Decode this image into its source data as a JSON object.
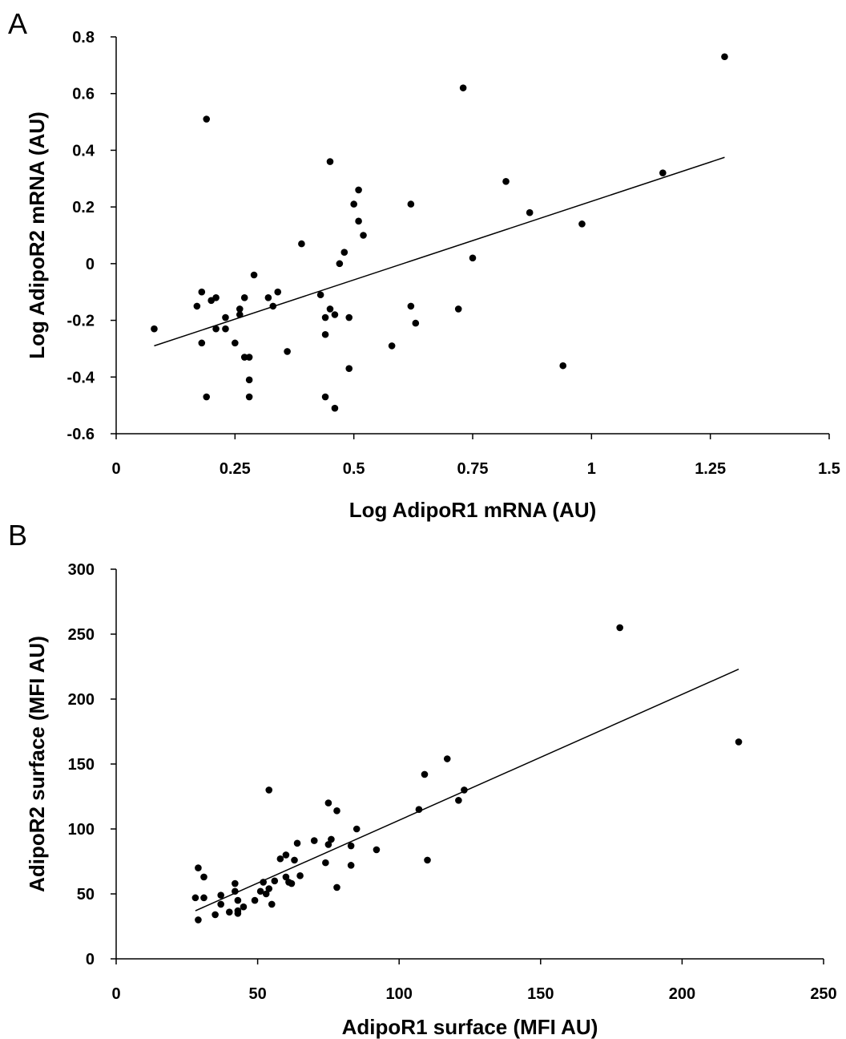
{
  "chart_data": [
    {
      "type": "scatter",
      "panel_label": "A",
      "xlabel": "Log AdipoR1 mRNA (AU)",
      "ylabel": "Log AdipoR2 mRNA (AU)",
      "xlim": [
        0,
        1.5
      ],
      "ylim": [
        -0.6,
        0.8
      ],
      "x_ticks": [
        "0",
        "0.25",
        "0.5",
        "0.75",
        "1",
        "1.25",
        "1.5"
      ],
      "x_tick_values": [
        0,
        0.25,
        0.5,
        0.75,
        1,
        1.25,
        1.5
      ],
      "y_ticks": [
        "-0.6",
        "-0.4",
        "-0.2",
        "0",
        "0.2",
        "0.4",
        "0.6",
        "0.8"
      ],
      "y_tick_values": [
        -0.6,
        -0.4,
        -0.2,
        0,
        0.2,
        0.4,
        0.6,
        0.8
      ],
      "grid": false,
      "trendline": {
        "x": [
          0.08,
          1.28
        ],
        "y": [
          -0.29,
          0.375
        ]
      },
      "points": [
        [
          0.08,
          -0.23
        ],
        [
          0.17,
          -0.15
        ],
        [
          0.18,
          -0.1
        ],
        [
          0.18,
          -0.28
        ],
        [
          0.19,
          0.51
        ],
        [
          0.19,
          -0.47
        ],
        [
          0.2,
          -0.13
        ],
        [
          0.21,
          -0.12
        ],
        [
          0.21,
          -0.23
        ],
        [
          0.23,
          -0.19
        ],
        [
          0.23,
          -0.23
        ],
        [
          0.25,
          -0.28
        ],
        [
          0.26,
          -0.16
        ],
        [
          0.26,
          -0.18
        ],
        [
          0.27,
          -0.12
        ],
        [
          0.27,
          -0.33
        ],
        [
          0.28,
          -0.33
        ],
        [
          0.28,
          -0.41
        ],
        [
          0.28,
          -0.47
        ],
        [
          0.29,
          -0.04
        ],
        [
          0.32,
          -0.12
        ],
        [
          0.33,
          -0.15
        ],
        [
          0.34,
          -0.1
        ],
        [
          0.36,
          -0.31
        ],
        [
          0.39,
          0.07
        ],
        [
          0.43,
          -0.11
        ],
        [
          0.44,
          -0.19
        ],
        [
          0.44,
          -0.25
        ],
        [
          0.44,
          -0.47
        ],
        [
          0.45,
          0.36
        ],
        [
          0.45,
          -0.16
        ],
        [
          0.46,
          -0.18
        ],
        [
          0.46,
          -0.51
        ],
        [
          0.47,
          0.0
        ],
        [
          0.48,
          0.04
        ],
        [
          0.49,
          -0.19
        ],
        [
          0.49,
          -0.37
        ],
        [
          0.5,
          0.21
        ],
        [
          0.51,
          0.26
        ],
        [
          0.51,
          0.15
        ],
        [
          0.52,
          0.1
        ],
        [
          0.58,
          -0.29
        ],
        [
          0.62,
          0.21
        ],
        [
          0.62,
          -0.15
        ],
        [
          0.63,
          -0.21
        ],
        [
          0.72,
          -0.16
        ],
        [
          0.73,
          0.62
        ],
        [
          0.75,
          0.02
        ],
        [
          0.82,
          0.29
        ],
        [
          0.87,
          0.18
        ],
        [
          0.94,
          -0.36
        ],
        [
          0.98,
          0.14
        ],
        [
          1.15,
          0.32
        ],
        [
          1.28,
          0.73
        ]
      ]
    },
    {
      "type": "scatter",
      "panel_label": "B",
      "xlabel": "AdipoR1 surface (MFI AU)",
      "ylabel": "AdipoR2 surface (MFI AU)",
      "xlim": [
        0,
        250
      ],
      "ylim": [
        0,
        300
      ],
      "x_ticks": [
        "0",
        "50",
        "100",
        "150",
        "200",
        "250"
      ],
      "x_tick_values": [
        0,
        50,
        100,
        150,
        200,
        250
      ],
      "y_ticks": [
        "0",
        "50",
        "100",
        "150",
        "200",
        "250",
        "300"
      ],
      "y_tick_values": [
        0,
        50,
        100,
        150,
        200,
        250,
        300
      ],
      "grid": false,
      "trendline": {
        "x": [
          28,
          220
        ],
        "y": [
          37,
          223
        ]
      },
      "points": [
        [
          28,
          47
        ],
        [
          29,
          30
        ],
        [
          29,
          70
        ],
        [
          31,
          47
        ],
        [
          31,
          63
        ],
        [
          35,
          34
        ],
        [
          37,
          42
        ],
        [
          37,
          49
        ],
        [
          40,
          36
        ],
        [
          42,
          58
        ],
        [
          42,
          52
        ],
        [
          43,
          45
        ],
        [
          43,
          37
        ],
        [
          43,
          35
        ],
        [
          45,
          40
        ],
        [
          49,
          45
        ],
        [
          51,
          52
        ],
        [
          52,
          59
        ],
        [
          53,
          50
        ],
        [
          54,
          130
        ],
        [
          54,
          54
        ],
        [
          55,
          42
        ],
        [
          56,
          60
        ],
        [
          58,
          77
        ],
        [
          60,
          63
        ],
        [
          60,
          80
        ],
        [
          61,
          59
        ],
        [
          62,
          58
        ],
        [
          63,
          76
        ],
        [
          64,
          89
        ],
        [
          65,
          64
        ],
        [
          70,
          91
        ],
        [
          74,
          74
        ],
        [
          75,
          88
        ],
        [
          75,
          120
        ],
        [
          76,
          92
        ],
        [
          78,
          55
        ],
        [
          78,
          114
        ],
        [
          83,
          72
        ],
        [
          83,
          87
        ],
        [
          85,
          100
        ],
        [
          92,
          84
        ],
        [
          107,
          115
        ],
        [
          109,
          142
        ],
        [
          110,
          76
        ],
        [
          117,
          154
        ],
        [
          121,
          122
        ],
        [
          123,
          130
        ],
        [
          178,
          255
        ],
        [
          220,
          167
        ]
      ]
    }
  ]
}
